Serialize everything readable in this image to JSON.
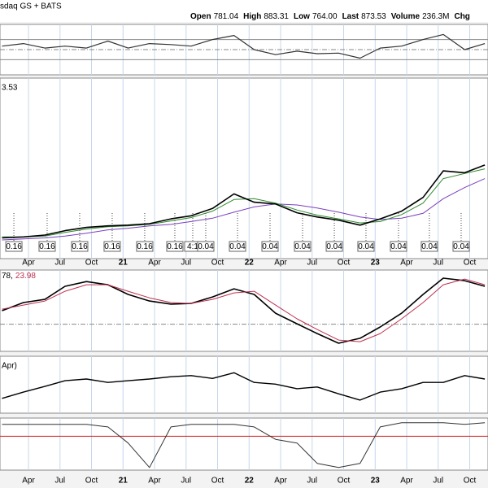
{
  "header": {
    "exchange": "sdaq GS + BATS",
    "quotes": [
      {
        "label": "Open",
        "value": "781.04"
      },
      {
        "label": "High",
        "value": "883.31"
      },
      {
        "label": "Low",
        "value": "764.00"
      },
      {
        "label": "Last",
        "value": "873.53"
      },
      {
        "label": "Volume",
        "value": "236.3M"
      }
    ],
    "trailing": "Chg"
  },
  "chart_data": [
    {
      "type": "line",
      "xlim": [
        2020.024,
        2023.895
      ],
      "ylim": [
        0,
        100
      ],
      "x": [
        2020.04,
        2020.21,
        2020.38,
        2020.54,
        2020.71,
        2020.88,
        2021.04,
        2021.21,
        2021.38,
        2021.54,
        2021.71,
        2021.88,
        2022.04,
        2022.21,
        2022.38,
        2022.54,
        2022.71,
        2022.88,
        2023.04,
        2023.21,
        2023.38,
        2023.54,
        2023.71,
        2023.87
      ],
      "ref_lines": [
        {
          "value": 30,
          "style": "solid",
          "color": "#888888"
        },
        {
          "value": 50,
          "style": "dashdot",
          "color": "#888888"
        },
        {
          "value": 70,
          "style": "solid",
          "color": "#888888"
        }
      ],
      "series": [
        {
          "color": "#333333",
          "values": [
            57,
            62,
            53,
            57,
            53,
            67,
            53,
            62,
            60,
            57,
            70,
            78,
            50,
            40,
            47,
            42,
            43,
            33,
            53,
            57,
            70,
            80,
            50,
            62
          ]
        }
      ]
    },
    {
      "type": "line",
      "log": true,
      "xlim": [
        2020.024,
        2023.895
      ],
      "ylim": [
        30,
        1500
      ],
      "title": "3.53",
      "x": [
        2020.04,
        2020.21,
        2020.38,
        2020.54,
        2020.71,
        2020.88,
        2021.04,
        2021.21,
        2021.38,
        2021.54,
        2021.71,
        2021.88,
        2022.04,
        2022.21,
        2022.38,
        2022.54,
        2022.71,
        2022.88,
        2023.04,
        2023.21,
        2023.38,
        2023.54,
        2023.71,
        2023.87
      ],
      "xticks": [
        {
          "value": 2020.25,
          "label": "Apr"
        },
        {
          "value": 2020.5,
          "label": "Jul"
        },
        {
          "value": 2020.75,
          "label": "Oct"
        },
        {
          "value": 2021,
          "label": "21"
        },
        {
          "value": 2021.25,
          "label": "Apr"
        },
        {
          "value": 2021.5,
          "label": "Jul"
        },
        {
          "value": 2021.75,
          "label": "Oct"
        },
        {
          "value": 2022,
          "label": "22"
        },
        {
          "value": 2022.25,
          "label": "Apr"
        },
        {
          "value": 2022.5,
          "label": "Jul"
        },
        {
          "value": 2022.75,
          "label": "Oct"
        },
        {
          "value": 2023,
          "label": "23"
        },
        {
          "value": 2023.25,
          "label": "Apr"
        },
        {
          "value": 2023.5,
          "label": "Jul"
        },
        {
          "value": 2023.75,
          "label": "Oct"
        }
      ],
      "series": [
        {
          "color": "#7a3fbf",
          "width": 1,
          "values": [
            45,
            46,
            47,
            49,
            52,
            56,
            58,
            61,
            63,
            67,
            72,
            82,
            92,
            98,
            96,
            90,
            82,
            74,
            70,
            72,
            80,
            110,
            140,
            170
          ]
        },
        {
          "color": "#2e8b2e",
          "width": 1,
          "values": [
            48,
            48,
            49,
            53,
            57,
            60,
            61,
            63,
            68,
            73,
            84,
            108,
            110,
            100,
            86,
            77,
            71,
            65,
            67,
            78,
            100,
            170,
            190,
            210
          ]
        },
        {
          "color": "#000000",
          "width": 1.6,
          "values": [
            47,
            48,
            50,
            55,
            59,
            61,
            62,
            64,
            71,
            76,
            89,
            122,
            102,
            98,
            81,
            74,
            69,
            62,
            71,
            84,
            113,
            201,
            193,
            228
          ]
        }
      ],
      "events": [
        {
          "x": 2020.134,
          "label": "0.16"
        },
        {
          "x": 2020.398,
          "label": "0.16"
        },
        {
          "x": 2020.656,
          "label": "0.16"
        },
        {
          "x": 2020.914,
          "label": "0.16"
        },
        {
          "x": 2021.172,
          "label": "0.16"
        },
        {
          "x": 2021.411,
          "label": "0.16"
        },
        {
          "x": 2021.553,
          "label": "4:1"
        },
        {
          "x": 2021.656,
          "label": "0.04"
        },
        {
          "x": 2021.908,
          "label": "0.04"
        },
        {
          "x": 2022.166,
          "label": "0.04"
        },
        {
          "x": 2022.424,
          "label": "0.04"
        },
        {
          "x": 2022.676,
          "label": "0.04"
        },
        {
          "x": 2022.927,
          "label": "0.04"
        },
        {
          "x": 2023.185,
          "label": "0.04"
        },
        {
          "x": 2023.43,
          "label": "0.04"
        },
        {
          "x": 2023.682,
          "label": "0.04"
        }
      ]
    },
    {
      "type": "line",
      "xlim": [
        2020.024,
        2023.895
      ],
      "ylim": [
        -12,
        24
      ],
      "title_parts": [
        "78,",
        "23.98"
      ],
      "x": [
        2020.04,
        2020.21,
        2020.38,
        2020.54,
        2020.71,
        2020.88,
        2021.04,
        2021.21,
        2021.38,
        2021.54,
        2021.71,
        2021.88,
        2022.04,
        2022.21,
        2022.38,
        2022.54,
        2022.71,
        2022.88,
        2023.04,
        2023.21,
        2023.38,
        2023.54,
        2023.71,
        2023.87
      ],
      "ref_lines": [
        {
          "value": 0,
          "style": "dashdot",
          "color": "#888888"
        }
      ],
      "series": [
        {
          "color": "#000000",
          "width": 1.6,
          "values": [
            6.0,
            9.6,
            11.0,
            16.8,
            18.9,
            17.5,
            13.2,
            10.3,
            8.9,
            9.2,
            12.1,
            15.7,
            13.2,
            4.9,
            0.2,
            -4.1,
            -8.4,
            -6.2,
            -1.2,
            4.9,
            13.2,
            20.4,
            19.3,
            16.8
          ]
        },
        {
          "color": "#c03050",
          "width": 1,
          "values": [
            6.7,
            8.5,
            10.3,
            14.6,
            17.5,
            17.5,
            14.6,
            11.7,
            9.6,
            9.2,
            11.0,
            13.9,
            14.6,
            8.5,
            2.4,
            -2.3,
            -7.0,
            -7.7,
            -4.1,
            2.4,
            9.6,
            17.5,
            20.0,
            17.5
          ]
        }
      ]
    },
    {
      "type": "line",
      "xlim": [
        2020.024,
        2023.895
      ],
      "ylim": [
        0,
        100
      ],
      "title": "Apr)",
      "x": [
        2020.04,
        2020.21,
        2020.38,
        2020.54,
        2020.71,
        2020.88,
        2021.04,
        2021.21,
        2021.38,
        2021.54,
        2021.71,
        2021.88,
        2022.04,
        2022.21,
        2022.38,
        2022.54,
        2022.71,
        2022.88,
        2023.04,
        2023.21,
        2023.38,
        2023.54,
        2023.71,
        2023.87
      ],
      "series": [
        {
          "color": "#000000",
          "width": 1.4,
          "values": [
            26,
            37,
            47,
            57,
            60,
            54,
            57,
            60,
            64,
            66,
            61,
            71,
            54,
            51,
            43,
            46,
            34,
            23,
            37,
            43,
            54,
            54,
            66,
            60
          ]
        }
      ]
    },
    {
      "type": "line",
      "xlim": [
        2020.024,
        2023.895
      ],
      "ylim": [
        0,
        100
      ],
      "x": [
        2020.04,
        2020.21,
        2020.38,
        2020.54,
        2020.71,
        2020.88,
        2021.04,
        2021.21,
        2021.38,
        2021.54,
        2021.71,
        2021.88,
        2022.04,
        2022.21,
        2022.38,
        2022.54,
        2022.71,
        2022.88,
        2023.04,
        2023.21,
        2023.38,
        2023.54,
        2023.71,
        2023.87
      ],
      "xticks": [
        {
          "value": 2020.25,
          "label": "Apr"
        },
        {
          "value": 2020.5,
          "label": "Jul"
        },
        {
          "value": 2020.75,
          "label": "Oct"
        },
        {
          "value": 2021,
          "label": "21"
        },
        {
          "value": 2021.25,
          "label": "Apr"
        },
        {
          "value": 2021.5,
          "label": "Jul"
        },
        {
          "value": 2021.75,
          "label": "Oct"
        },
        {
          "value": 2022,
          "label": "22"
        },
        {
          "value": 2022.25,
          "label": "Apr"
        },
        {
          "value": 2022.5,
          "label": "Jul"
        },
        {
          "value": 2022.75,
          "label": "Oct"
        },
        {
          "value": 2023,
          "label": "23"
        },
        {
          "value": 2023.25,
          "label": "Apr"
        },
        {
          "value": 2023.5,
          "label": "Jul"
        },
        {
          "value": 2023.75,
          "label": "Oct"
        }
      ],
      "ref_lines": [
        {
          "value": 65,
          "style": "solid",
          "color": "#d02020"
        }
      ],
      "series": [
        {
          "color": "#333333",
          "width": 1,
          "values": [
            88,
            88,
            88,
            88,
            88,
            83,
            52,
            5,
            83,
            88,
            88,
            88,
            83,
            59,
            52,
            13,
            5,
            13,
            83,
            91,
            91,
            91,
            88,
            91
          ]
        }
      ]
    }
  ]
}
